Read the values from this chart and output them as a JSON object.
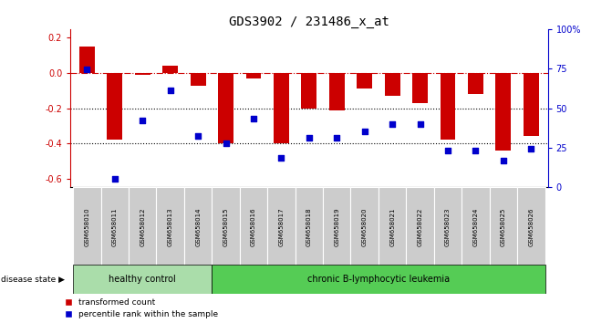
{
  "title": "GDS3902 / 231486_x_at",
  "samples": [
    "GSM658010",
    "GSM658011",
    "GSM658012",
    "GSM658013",
    "GSM658014",
    "GSM658015",
    "GSM658016",
    "GSM658017",
    "GSM658018",
    "GSM658019",
    "GSM658020",
    "GSM658021",
    "GSM658022",
    "GSM658023",
    "GSM658024",
    "GSM658025",
    "GSM658026"
  ],
  "bar_values": [
    0.15,
    -0.38,
    -0.01,
    0.04,
    -0.07,
    -0.4,
    -0.03,
    -0.4,
    -0.2,
    -0.21,
    -0.09,
    -0.13,
    -0.17,
    -0.38,
    -0.12,
    -0.44,
    -0.36
  ],
  "blue_values": [
    0.02,
    -0.6,
    -0.27,
    -0.1,
    -0.36,
    -0.4,
    -0.26,
    -0.48,
    -0.37,
    -0.37,
    -0.33,
    -0.29,
    -0.29,
    -0.44,
    -0.44,
    -0.5,
    -0.43
  ],
  "bar_color": "#cc0000",
  "dot_color": "#0000cc",
  "ylim": [
    -0.65,
    0.25
  ],
  "y2lim": [
    0,
    100
  ],
  "yticks": [
    0.2,
    0.0,
    -0.2,
    -0.4,
    -0.6
  ],
  "y2ticks": [
    100,
    75,
    50,
    25,
    0
  ],
  "y2ticklabels": [
    "100%",
    "75",
    "50",
    "25",
    "0"
  ],
  "hline_y": 0.0,
  "dotted_lines": [
    -0.2,
    -0.4
  ],
  "healthy_count": 5,
  "group1_label": "healthy control",
  "group2_label": "chronic B-lymphocytic leukemia",
  "disease_state_label": "disease state",
  "legend_bar": "transformed count",
  "legend_dot": "percentile rank within the sample",
  "bar_width": 0.55,
  "bg_plot": "#ffffff",
  "bg_xticklabel": "#cccccc",
  "bg_group1": "#aaddaa",
  "bg_group2": "#55cc55",
  "title_fontsize": 10,
  "tick_fontsize": 7,
  "label_fontsize": 7
}
